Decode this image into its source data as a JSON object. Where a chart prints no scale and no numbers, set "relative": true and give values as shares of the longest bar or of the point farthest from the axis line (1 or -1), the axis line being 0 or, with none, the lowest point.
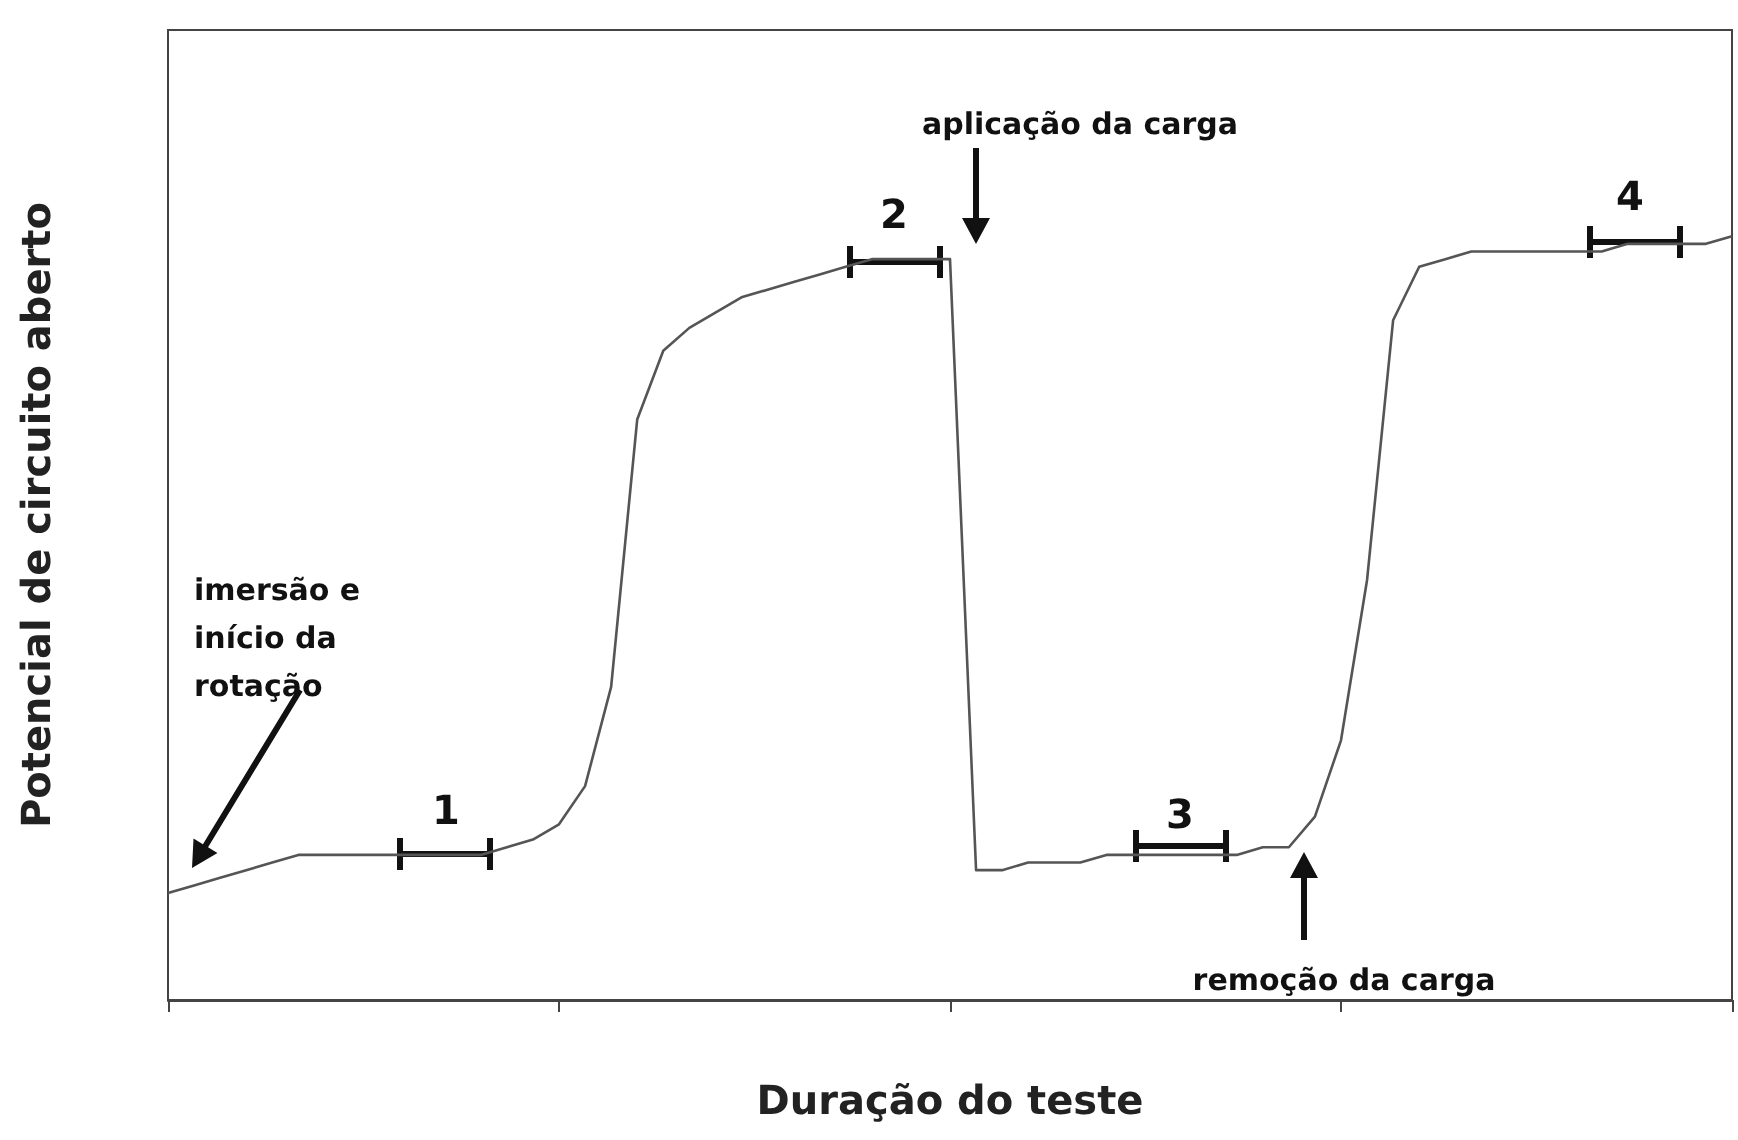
{
  "chart_data": {
    "type": "line",
    "relative": true,
    "xlabel": "Duração do teste",
    "ylabel": "Potencial de circuito aberto",
    "categories": [
      null,
      null,
      null,
      null,
      null,
      null,
      null,
      null,
      null,
      null,
      null,
      null,
      null,
      null,
      null,
      null,
      null,
      null,
      null,
      null,
      null,
      null,
      null,
      null,
      null,
      null,
      null,
      null,
      null,
      null,
      null,
      null,
      null,
      null,
      null,
      null,
      null,
      null,
      null,
      null,
      null,
      null,
      null,
      null,
      null,
      null,
      null,
      null,
      null,
      null,
      null,
      null,
      null,
      null,
      null,
      null,
      null,
      null,
      null,
      null,
      null
    ],
    "series": [
      {
        "color": "#555555",
        "values": [
          0.14,
          0.15,
          0.16,
          0.17,
          0.18,
          0.19,
          0.19,
          0.19,
          0.19,
          0.19,
          0.19,
          0.19,
          0.19,
          0.2,
          0.21,
          0.23,
          0.28,
          0.41,
          0.76,
          0.85,
          0.88,
          0.9,
          0.92,
          0.93,
          0.94,
          0.95,
          0.96,
          0.97,
          0.97,
          0.97,
          0.97,
          0.17,
          0.17,
          0.18,
          0.18,
          0.18,
          0.19,
          0.19,
          0.19,
          0.19,
          0.19,
          0.19,
          0.2,
          0.2,
          0.24,
          0.34,
          0.55,
          0.89,
          0.96,
          0.97,
          0.98,
          0.98,
          0.98,
          0.98,
          0.98,
          0.98,
          0.99,
          0.99,
          0.99,
          0.99,
          1
        ]
      }
    ],
    "marker": "none",
    "line_style": "solid",
    "annotations": [
      "imersão e início da rotação",
      "aplicação da carga",
      "remoção da carga",
      "1",
      "2",
      "3",
      "4"
    ]
  }
}
